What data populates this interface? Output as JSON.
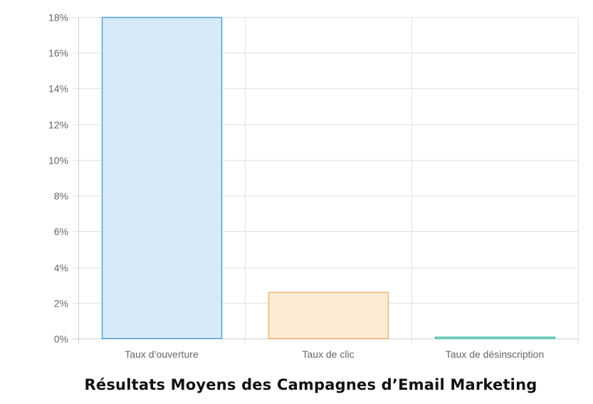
{
  "chart_data": {
    "type": "bar",
    "title": "Résultats Moyens des Campagnes d’Email Marketing",
    "categories": [
      "Taux d’ouverture",
      "Taux de clic",
      "Taux de désinscription"
    ],
    "values": [
      18,
      2.6,
      0.1
    ],
    "y_unit": "%",
    "ylim": [
      0,
      18
    ],
    "y_ticks": [
      "0%",
      "2%",
      "4%",
      "6%",
      "8%",
      "10%",
      "12%",
      "14%",
      "16%",
      "18%"
    ],
    "grid": true,
    "legend": "none",
    "colors": {
      "fills": [
        "#d7eaf9",
        "#fdebd5",
        "#d7f1ee"
      ],
      "strokes": [
        "#4da3d4",
        "#efb36b",
        "#4fbfb0"
      ]
    }
  }
}
